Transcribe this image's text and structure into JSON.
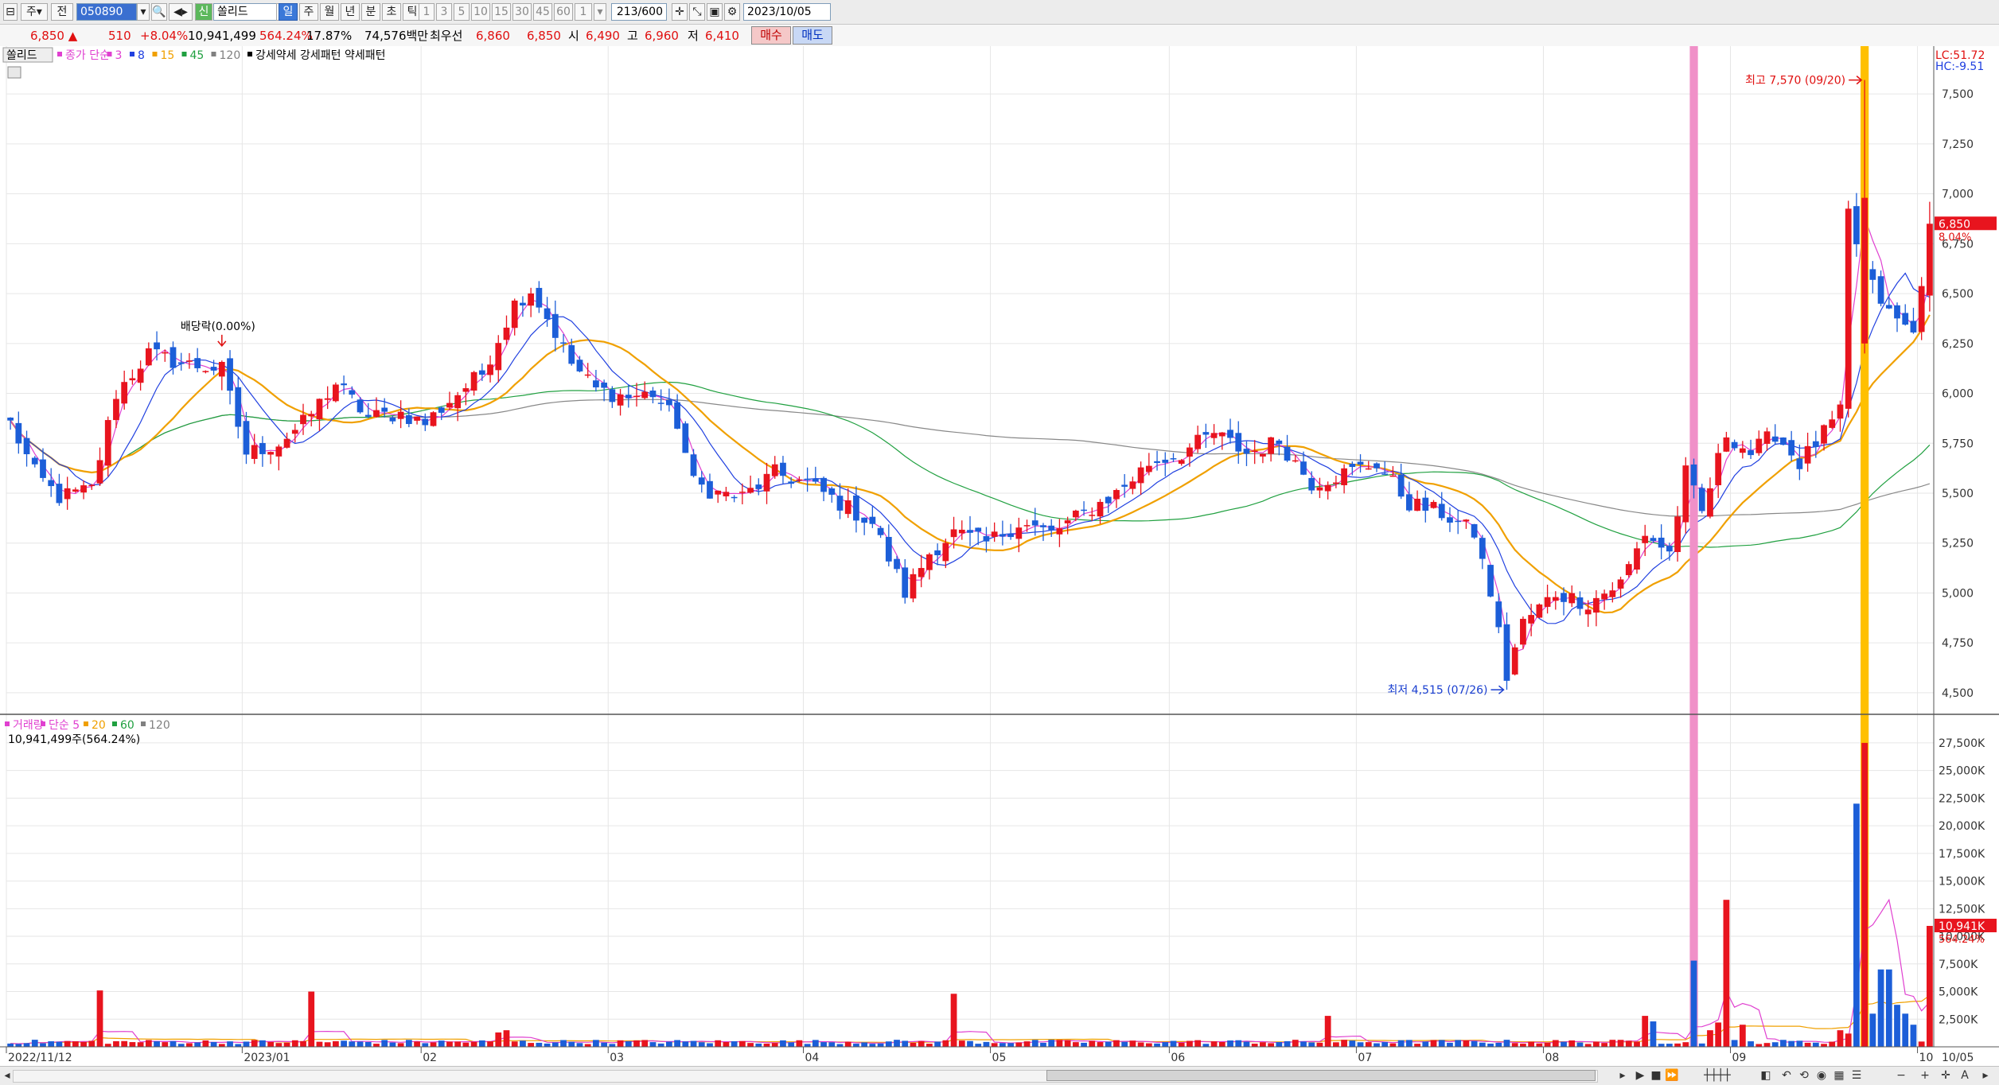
{
  "toolbar": {
    "type_label": "주",
    "jeon_label": "전",
    "stock_code": "050890",
    "market_badge": "신",
    "stock_name": "쏠리드",
    "periods": [
      "일",
      "주",
      "월",
      "년",
      "분",
      "초",
      "틱"
    ],
    "active_period": "일",
    "minute_options": [
      "1",
      "3",
      "5",
      "10",
      "15",
      "30",
      "45",
      "60"
    ],
    "interval_value": "1",
    "count": "213",
    "count_total": "/600",
    "date": "2023/10/05"
  },
  "info": {
    "price": "6,850",
    "change_arrow": "▲",
    "change": "510",
    "change_pct": "+8.04%",
    "volume": "10,941,499",
    "volume_ratio": "564.24%",
    "turnover": "17.87%",
    "amount": "74,576백만",
    "best_label": "최우선",
    "ask": "6,860",
    "bid": "6,850",
    "open_label": "시",
    "open": "6,490",
    "high_label": "고",
    "high": "6,960",
    "low_label": "저",
    "low": "6,410",
    "buy_label": "매수",
    "sell_label": "매도"
  },
  "price_panel": {
    "stock_label": "쏠리드",
    "legend_items": [
      {
        "text": "종가 단순",
        "color": "#e040d0"
      },
      {
        "text": "3",
        "color": "#e040d0"
      },
      {
        "text": "8",
        "color": "#2040e0"
      },
      {
        "text": "15",
        "color": "#f0a000"
      },
      {
        "text": "45",
        "color": "#20a040"
      },
      {
        "text": "120",
        "color": "#808080"
      },
      {
        "text": "강세약세 강세패턴  약세패턴",
        "color": "#000000"
      }
    ],
    "lc": "LC:51.72",
    "hc": "HC:-9.51",
    "high_annotation": "최고 7,570 (09/20)",
    "low_annotation": "최저 4,515 (07/26)",
    "dividend_annotation": "배당락(0.00%)",
    "current_price_tag": "6,850",
    "current_pct_tag": "8.04%",
    "y_ticks": [
      "7,500",
      "7,250",
      "7,000",
      "6,750",
      "6,500",
      "6,250",
      "6,000",
      "5,750",
      "5,500",
      "5,250",
      "5,000",
      "4,750",
      "4,500"
    ]
  },
  "volume_panel": {
    "legend_items": [
      {
        "text": "거래량",
        "color": "#e040d0"
      },
      {
        "text": "단순 5",
        "color": "#e040d0"
      },
      {
        "text": "20",
        "color": "#f0a000"
      },
      {
        "text": "60",
        "color": "#20a040"
      },
      {
        "text": "120",
        "color": "#808080"
      }
    ],
    "volume_text": "10,941,499주(564.24%)",
    "current_volume_tag": "10,941K",
    "current_pct_tag": "564.24%",
    "y_ticks": [
      "27,500K",
      "25,000K",
      "22,500K",
      "20,000K",
      "17,500K",
      "15,000K",
      "12,500K",
      "10,000K",
      "7,500K",
      "5,000K",
      "2,500K"
    ]
  },
  "x_ticks": [
    "2022/11/12",
    "2023/01",
    "02",
    "03",
    "04",
    "05",
    "06",
    "07",
    "08",
    "09",
    "10"
  ],
  "x_end_label": "10/05",
  "chart_data": {
    "type": "candlestick",
    "close_price_knots": [
      [
        0,
        5850
      ],
      [
        3,
        5600
      ],
      [
        6,
        5480
      ],
      [
        10,
        5520
      ],
      [
        13,
        6000
      ],
      [
        17,
        6200
      ],
      [
        21,
        6150
      ],
      [
        26,
        6120
      ],
      [
        29,
        5700
      ],
      [
        33,
        5750
      ],
      [
        36,
        5850
      ],
      [
        40,
        6050
      ],
      [
        44,
        5880
      ],
      [
        48,
        5900
      ],
      [
        51,
        5850
      ],
      [
        55,
        6000
      ],
      [
        58,
        6100
      ],
      [
        62,
        6450
      ],
      [
        64,
        6520
      ],
      [
        66,
        6380
      ],
      [
        69,
        6150
      ],
      [
        72,
        6020
      ],
      [
        76,
        5980
      ],
      [
        79,
        6000
      ],
      [
        82,
        5850
      ],
      [
        84,
        5550
      ],
      [
        87,
        5500
      ],
      [
        90,
        5480
      ],
      [
        94,
        5600
      ],
      [
        98,
        5550
      ],
      [
        102,
        5450
      ],
      [
        106,
        5350
      ],
      [
        110,
        5000
      ],
      [
        113,
        5200
      ],
      [
        116,
        5300
      ],
      [
        120,
        5250
      ],
      [
        124,
        5350
      ],
      [
        128,
        5300
      ],
      [
        132,
        5400
      ],
      [
        136,
        5500
      ],
      [
        140,
        5650
      ],
      [
        144,
        5700
      ],
      [
        148,
        5800
      ],
      [
        152,
        5700
      ],
      [
        156,
        5760
      ],
      [
        160,
        5550
      ],
      [
        164,
        5600
      ],
      [
        168,
        5650
      ],
      [
        172,
        5450
      ],
      [
        176,
        5400
      ],
      [
        180,
        5300
      ],
      [
        182,
        5000
      ],
      [
        184,
        4600
      ],
      [
        186,
        4850
      ],
      [
        190,
        5000
      ],
      [
        194,
        4950
      ],
      [
        198,
        5050
      ],
      [
        201,
        5300
      ],
      [
        204,
        5200
      ],
      [
        206,
        5600
      ],
      [
        208,
        5400
      ],
      [
        211,
        5800
      ],
      [
        214,
        5700
      ],
      [
        217,
        5800
      ],
      [
        220,
        5650
      ],
      [
        223,
        5800
      ],
      [
        225,
        5900
      ],
      [
        226,
        6900
      ],
      [
        228,
        6600
      ],
      [
        231,
        6400
      ],
      [
        234,
        6300
      ],
      [
        236,
        6850
      ]
    ],
    "highlight_bars": [
      {
        "index": 207,
        "color": "#f090c8"
      },
      {
        "index": 228,
        "color": "#ffc000"
      }
    ],
    "volume_spikes_k": {
      "11": 5100,
      "37": 5000,
      "60": 1300,
      "61": 1500,
      "116": 4800,
      "162": 2800,
      "201": 2800,
      "202": 2300,
      "207": 7800,
      "209": 1500,
      "210": 2200,
      "211": 13300,
      "213": 2000,
      "225": 1500,
      "226": 1200,
      "227": 22000,
      "228": 27500,
      "229": 3000,
      "230": 7000,
      "231": 7000,
      "232": 3800,
      "233": 3000,
      "234": 2000,
      "236": 10941
    },
    "price_ylim": [
      4400,
      7700
    ],
    "volume_ylim": [
      0,
      28500
    ]
  }
}
